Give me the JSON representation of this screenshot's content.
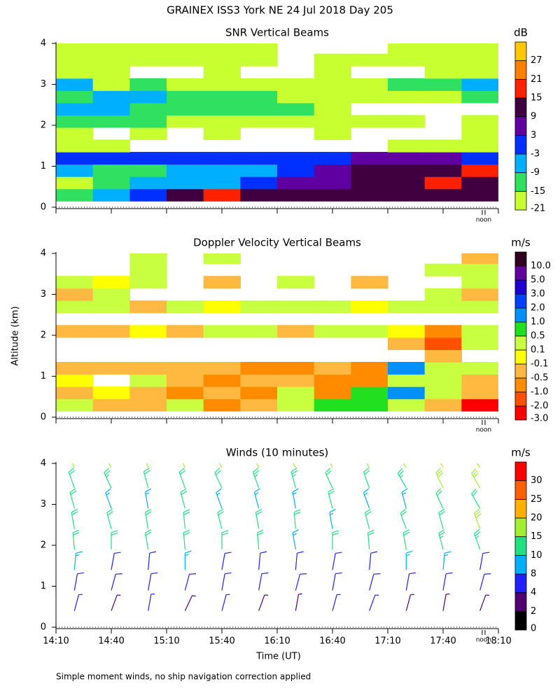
{
  "title": "GRAINEX ISS3 York NE  24 Jul 2018 Day 205",
  "ylabel": "Altitude (km)",
  "xlabel": "Time (UT)",
  "note": "Simple moment winds, no ship navigation correction applied",
  "chart_data": [
    {
      "type": "heatmap",
      "title": "SNR Vertical Beams",
      "x": [
        860,
        880,
        900,
        920,
        940,
        960,
        980,
        1000,
        1020,
        1040,
        1060,
        1080
      ],
      "y": [
        0.3,
        0.6,
        0.9,
        1.2,
        1.5,
        1.8,
        2.1,
        2.4,
        2.7,
        3.0,
        3.3,
        3.6,
        3.9
      ],
      "values": [
        [
          -12,
          -6,
          2,
          12,
          16,
          14,
          12,
          10,
          12,
          12,
          14,
          10
        ],
        [
          -16,
          -10,
          -8,
          -6,
          -4,
          -2,
          4,
          8,
          10,
          12,
          16,
          10
        ],
        [
          -8,
          -10,
          -12,
          -8,
          -6,
          -4,
          -2,
          6,
          10,
          12,
          14,
          16
        ],
        [
          -2,
          -1,
          0,
          -2,
          -1,
          -3,
          0,
          2,
          4,
          6,
          8,
          2
        ],
        [
          -20,
          -19,
          null,
          null,
          null,
          null,
          null,
          null,
          null,
          -20,
          -19,
          -18
        ],
        [
          -18,
          null,
          -19,
          null,
          -20,
          null,
          null,
          -19,
          null,
          null,
          null,
          -19
        ],
        [
          -12,
          -14,
          -13,
          -16,
          -18,
          -19,
          -20,
          -19,
          -18,
          -19,
          null,
          -18
        ],
        [
          -7,
          -8,
          -10,
          -12,
          -11,
          -13,
          -14,
          -17,
          null,
          null,
          null,
          null
        ],
        [
          -10,
          -6,
          -8,
          -12,
          -10,
          -14,
          -16,
          -18,
          -17,
          -18,
          -16,
          -12
        ],
        [
          -8,
          -16,
          -14,
          -18,
          -19,
          -17,
          -18,
          -17,
          -16,
          -15,
          -12,
          -8
        ],
        [
          -18,
          -17,
          null,
          null,
          -19,
          null,
          null,
          -19,
          null,
          null,
          -20,
          -19
        ],
        [
          -17,
          -18,
          -19,
          -20,
          -18,
          -19,
          null,
          -20,
          -19,
          -18,
          -19,
          -18
        ],
        [
          -19,
          -18,
          -16,
          -17,
          -19,
          -20,
          null,
          null,
          null,
          -20,
          -18,
          -19
        ]
      ],
      "xlim": [
        850,
        1090
      ],
      "ylim": [
        0,
        4
      ],
      "yticks": [
        0,
        1,
        2,
        3,
        4
      ],
      "annotations": [
        {
          "x": 1082,
          "text": "noon"
        }
      ],
      "colorbar": {
        "title": "dB",
        "ticks": [
          -21,
          -15,
          -9,
          -3,
          3,
          9,
          15,
          21,
          27
        ],
        "colors": [
          "#c8ff30",
          "#30e060",
          "#00b0ff",
          "#0030ff",
          "#6000a0",
          "#400040",
          "#ff2000",
          "#ff8000",
          "#ffc800"
        ]
      }
    },
    {
      "type": "heatmap",
      "title": "Doppler Velocity Vertical Beams",
      "x": [
        860,
        880,
        900,
        920,
        940,
        960,
        980,
        1000,
        1020,
        1040,
        1060,
        1080
      ],
      "y": [
        0.3,
        0.6,
        0.9,
        1.2,
        1.5,
        1.8,
        2.1,
        2.4,
        2.7,
        3.0,
        3.3,
        3.6,
        3.9
      ],
      "values": [
        [
          0.2,
          -0.3,
          -0.2,
          0.3,
          -0.6,
          -0.2,
          0.3,
          0.6,
          0.7,
          0.2,
          -0.4,
          -2.5
        ],
        [
          -0.2,
          0.05,
          -0.3,
          -0.7,
          -0.4,
          -0.6,
          0.3,
          -0.8,
          0.8,
          1.5,
          0.2,
          -0.3
        ],
        [
          0.05,
          null,
          0.2,
          -0.3,
          -0.6,
          -0.3,
          -0.5,
          -0.8,
          -0.6,
          0.2,
          0.3,
          -0.2
        ],
        [
          -0.4,
          -0.3,
          -0.2,
          -0.4,
          -0.5,
          -0.6,
          -0.7,
          -0.4,
          -0.6,
          1.2,
          0.4,
          0.3
        ],
        [
          null,
          null,
          null,
          null,
          null,
          null,
          null,
          null,
          null,
          null,
          -0.3,
          null
        ],
        [
          null,
          null,
          null,
          null,
          null,
          null,
          null,
          null,
          null,
          -0.4,
          -1.2,
          0.2
        ],
        [
          -0.3,
          -0.2,
          0.05,
          -0.2,
          0.2,
          0.3,
          -0.2,
          0.2,
          0.3,
          0.05,
          -0.6,
          0.2
        ],
        [
          null,
          null,
          null,
          null,
          null,
          null,
          null,
          null,
          null,
          null,
          null,
          null
        ],
        [
          0.2,
          0.3,
          -0.2,
          0.2,
          0.05,
          0.2,
          0.3,
          0.2,
          0.05,
          0.2,
          0.3,
          0.3
        ],
        [
          -0.2,
          0.2,
          null,
          null,
          null,
          null,
          null,
          null,
          null,
          null,
          0.2,
          -0.2
        ],
        [
          0.2,
          0.05,
          0.3,
          null,
          -0.2,
          null,
          0.2,
          null,
          -0.3,
          null,
          null,
          0.2
        ],
        [
          null,
          null,
          0.3,
          null,
          null,
          null,
          null,
          null,
          null,
          null,
          0.3,
          0.2
        ],
        [
          null,
          null,
          0.2,
          null,
          0.3,
          null,
          null,
          null,
          null,
          null,
          null,
          -0.2
        ]
      ],
      "xlim": [
        850,
        1090
      ],
      "ylim": [
        0,
        4
      ],
      "yticks": [
        0,
        1,
        2,
        3,
        4
      ],
      "annotations": [
        {
          "x": 1082,
          "text": "noon"
        }
      ],
      "colorbar": {
        "title": "m/s",
        "ticks": [
          {
            "value": -3,
            "label": "-3.0"
          },
          {
            "value": -2,
            "label": "-2.0"
          },
          {
            "value": -1,
            "label": "-1.0"
          },
          -0.5,
          -0.1,
          0.1,
          0.5,
          {
            "value": 1,
            "label": "1.0"
          },
          {
            "value": 2,
            "label": "2.0"
          },
          {
            "value": 3,
            "label": "3.0"
          },
          {
            "value": 5,
            "label": "5.0"
          },
          {
            "value": 10,
            "label": "10.0"
          }
        ],
        "colors": [
          "#ff0000",
          "#ff5000",
          "#ff8c00",
          "#ffb840",
          "#ffff00",
          "#c8ff40",
          "#20e020",
          "#0090ff",
          "#0040ff",
          "#2000d0",
          "#6000a0",
          "#300020"
        ]
      }
    },
    {
      "type": "barbs",
      "title": "Winds (10 minutes)",
      "x": [
        860,
        880,
        900,
        920,
        940,
        960,
        980,
        1000,
        1020,
        1040,
        1060,
        1080
      ],
      "y": [
        0.4,
        0.9,
        1.4,
        1.9,
        2.4,
        2.9,
        3.4,
        3.9
      ],
      "values": [
        [
          4,
          3,
          4,
          3,
          4,
          3,
          3,
          4,
          4,
          3,
          3,
          3
        ],
        [
          5,
          5,
          6,
          5,
          5,
          6,
          5,
          5,
          6,
          5,
          5,
          5
        ],
        [
          8,
          7,
          7,
          8,
          7,
          7,
          6,
          6,
          7,
          8,
          9,
          6
        ],
        [
          10,
          11,
          12,
          10,
          11,
          10,
          9,
          10,
          11,
          12,
          13,
          14
        ],
        [
          12,
          11,
          10,
          12,
          11,
          10,
          10,
          9,
          12,
          11,
          12,
          15
        ],
        [
          10,
          9,
          8,
          10,
          9,
          8,
          9,
          10,
          8,
          9,
          10,
          12
        ],
        [
          12,
          13,
          11,
          10,
          12,
          14,
          13,
          11,
          12,
          14,
          15,
          16
        ],
        [
          16,
          18,
          17,
          16,
          15,
          17,
          16,
          18,
          17,
          16,
          16,
          17
        ]
      ],
      "directions": [
        [
          15,
          20,
          10,
          25,
          15,
          20,
          10,
          15,
          20,
          15,
          10,
          20
        ],
        [
          10,
          15,
          10,
          15,
          10,
          10,
          15,
          10,
          15,
          10,
          10,
          15
        ],
        [
          5,
          10,
          5,
          0,
          10,
          5,
          5,
          10,
          5,
          0,
          5,
          10
        ],
        [
          355,
          0,
          350,
          355,
          0,
          355,
          350,
          0,
          355,
          350,
          345,
          340
        ],
        [
          350,
          345,
          350,
          355,
          345,
          350,
          355,
          350,
          345,
          340,
          345,
          340
        ],
        [
          345,
          340,
          350,
          345,
          340,
          345,
          350,
          345,
          340,
          345,
          335,
          330
        ],
        [
          340,
          335,
          345,
          340,
          335,
          340,
          345,
          335,
          340,
          330,
          335,
          330
        ],
        [
          335,
          330,
          340,
          335,
          330,
          335,
          330,
          335,
          330,
          325,
          330,
          325
        ]
      ],
      "xlim": [
        850,
        1090
      ],
      "ylim": [
        0,
        4
      ],
      "yticks": [
        0,
        1,
        2,
        3,
        4
      ],
      "xticks": [
        {
          "value": 850,
          "label": "14:10"
        },
        {
          "value": 880,
          "label": "14:40"
        },
        {
          "value": 910,
          "label": "15:10"
        },
        {
          "value": 940,
          "label": "15:40"
        },
        {
          "value": 970,
          "label": "16:10"
        },
        {
          "value": 1000,
          "label": "16:40"
        },
        {
          "value": 1030,
          "label": "17:10"
        },
        {
          "value": 1060,
          "label": "17:40"
        },
        {
          "value": 1090,
          "label": "18:10"
        }
      ],
      "annotations": [
        {
          "x": 1082,
          "text": "noon"
        }
      ],
      "colorbar": {
        "title": "m/s",
        "ticks": [
          0,
          2,
          4,
          8,
          10,
          15,
          20,
          25,
          30
        ],
        "colors": [
          "#000000",
          "#500070",
          "#2020ff",
          "#00b0ff",
          "#20e080",
          "#a0f030",
          "#ffb000",
          "#ff6000",
          "#ff0000"
        ]
      }
    }
  ]
}
